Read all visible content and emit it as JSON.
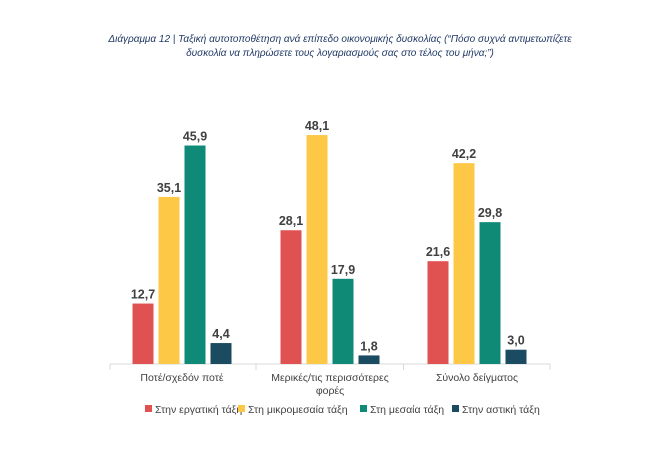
{
  "chart_data": {
    "type": "bar",
    "title_line1": "Διάγραμμα 12 | Ταξική αυτοτοποθέτηση ανά επίπεδο οικονομικής δυσκολίας (“Πόσο συχνά αντιμετωπίζετε",
    "title_line2": "δυσκολία να πληρώσετε τους λογαριασμούς σας στο τέλος του μήνα;”)",
    "categories": [
      [
        "Ποτέ/σχεδόν ποτέ"
      ],
      [
        "Μερικές/τις περισσότερες",
        "φορές"
      ],
      [
        "Σύνολο δείγματος"
      ]
    ],
    "series": [
      {
        "name": "Στην εργατική τάξη",
        "color": "#e05252",
        "values": [
          12.7,
          28.1,
          21.6
        ],
        "labels": [
          "12,7",
          "28,1",
          "21,6"
        ]
      },
      {
        "name": "Στη μικρομεσαία τάξη",
        "color": "#fcc846",
        "values": [
          35.1,
          48.1,
          42.2
        ],
        "labels": [
          "35,1",
          "48,1",
          "42,2"
        ]
      },
      {
        "name": "Στη μεσαία τάξη",
        "color": "#0f8a77",
        "values": [
          45.9,
          17.9,
          29.8
        ],
        "labels": [
          "45,9",
          "17,9",
          "29,8"
        ]
      },
      {
        "name": "Στην αστική τάξη",
        "color": "#1b4b60",
        "values": [
          4.4,
          1.8,
          3.0
        ],
        "labels": [
          "4,4",
          "1,8",
          "3,0"
        ]
      }
    ],
    "xlabel": "",
    "ylabel": "",
    "ylim": [
      0,
      50
    ],
    "grid": false,
    "legend": "bottom"
  }
}
